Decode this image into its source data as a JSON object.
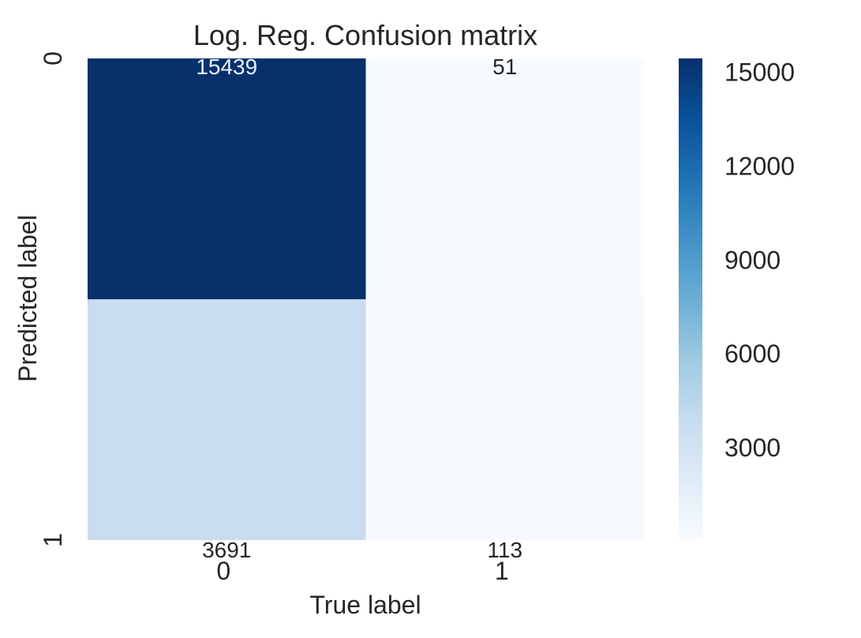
{
  "chart_data": {
    "type": "heatmap",
    "title": "Log. Reg. Confusion matrix",
    "xlabel": "True label",
    "ylabel": "Predicted label",
    "x_tick_labels": [
      "0",
      "1"
    ],
    "y_tick_labels": [
      "0",
      "1"
    ],
    "matrix": [
      [
        15439,
        51
      ],
      [
        3691,
        113
      ]
    ],
    "matrix_labels": [
      [
        "15439",
        "51"
      ],
      [
        "3691",
        "113"
      ]
    ],
    "colormap": "Blues",
    "colorbar": {
      "range": [
        51,
        15439
      ],
      "ticks": [
        3000,
        6000,
        9000,
        12000,
        15000
      ],
      "tick_labels": [
        "3000",
        "6000",
        "9000",
        "12000",
        "15000"
      ]
    },
    "grid": false,
    "legend": "colorbar-right"
  }
}
